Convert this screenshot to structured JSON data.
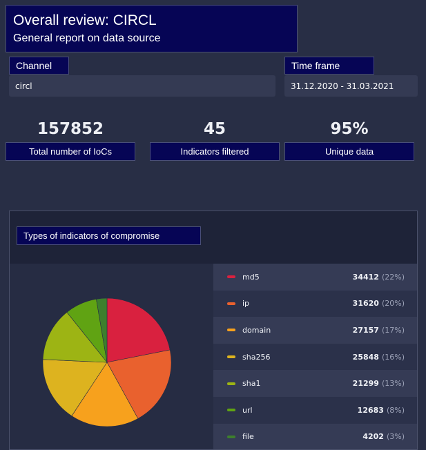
{
  "header": {
    "title": "Overall review: CIRCL",
    "subtitle": "General report on data source"
  },
  "channel": {
    "label": "Channel",
    "value": "circl"
  },
  "timeframe": {
    "label": "Time frame",
    "value": "31.12.2020 - 31.03.2021"
  },
  "stats": [
    {
      "value": "157852",
      "label": "Total number of IoCs"
    },
    {
      "value": "45",
      "label": "Indicators filtered"
    },
    {
      "value": "95%",
      "label": "Unique data"
    }
  ],
  "panel": {
    "title": "Types of indicators of compromise"
  },
  "chart_data": {
    "type": "pie",
    "title": "Types of indicators of compromise",
    "categories": [
      "md5",
      "ip",
      "domain",
      "sha256",
      "sha1",
      "url",
      "file"
    ],
    "values": [
      34412,
      31620,
      27157,
      25848,
      21299,
      12683,
      4202
    ],
    "percent_labels": [
      "(22%)",
      "(20%)",
      "(17%)",
      "(16%)",
      "(13%)",
      "(8%)",
      "(3%)"
    ],
    "colors": [
      "#d9213f",
      "#e9612e",
      "#f7a11d",
      "#ddb31f",
      "#9db414",
      "#60a313",
      "#3d7f2d"
    ],
    "legend": "right"
  }
}
